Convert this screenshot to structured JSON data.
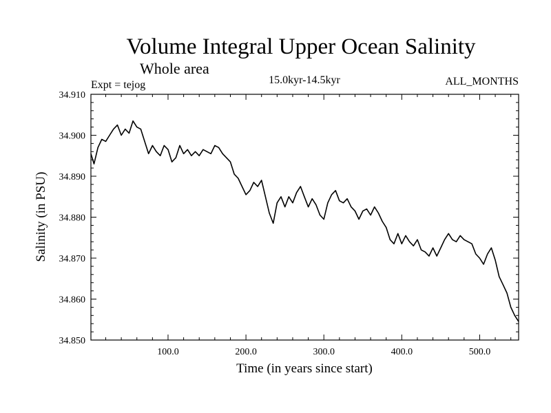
{
  "chart_data": {
    "type": "line",
    "title": "Volume Integral Upper Ocean Salinity",
    "subtitle": "Whole area",
    "experiment_label": "Expt = tejog",
    "period_label": "15.0kyr-14.5kyr",
    "months_label": "ALL_MONTHS",
    "xlabel": "Time (in years since start)",
    "ylabel": "Salinity (in PSU)",
    "xlim": [
      1,
      550
    ],
    "ylim": [
      34.85,
      34.91
    ],
    "x_ticks": [
      100,
      200,
      300,
      400,
      500
    ],
    "x_tick_labels": [
      "100.0",
      "200.0",
      "300.0",
      "400.0",
      "500.0"
    ],
    "y_ticks": [
      34.85,
      34.86,
      34.87,
      34.88,
      34.89,
      34.9,
      34.91
    ],
    "y_tick_labels": [
      "34.850",
      "34.860",
      "34.870",
      "34.880",
      "34.890",
      "34.900",
      "34.910"
    ],
    "grid": false,
    "series": [
      {
        "name": "Salinity",
        "color": "#000000",
        "x": [
          1,
          5,
          10,
          15,
          20,
          25,
          30,
          35,
          40,
          45,
          50,
          55,
          60,
          65,
          70,
          75,
          80,
          85,
          90,
          95,
          100,
          105,
          110,
          115,
          120,
          125,
          130,
          135,
          140,
          145,
          150,
          155,
          160,
          165,
          170,
          175,
          180,
          185,
          190,
          195,
          200,
          205,
          210,
          215,
          220,
          225,
          230,
          235,
          240,
          245,
          250,
          255,
          260,
          265,
          270,
          275,
          280,
          285,
          290,
          295,
          300,
          305,
          310,
          315,
          320,
          325,
          330,
          335,
          340,
          345,
          350,
          355,
          360,
          365,
          370,
          375,
          380,
          385,
          390,
          395,
          400,
          405,
          410,
          415,
          420,
          425,
          430,
          435,
          440,
          445,
          450,
          455,
          460,
          465,
          470,
          475,
          480,
          485,
          490,
          495,
          500,
          505,
          510,
          515,
          520,
          525,
          530,
          535,
          540,
          545,
          550
        ],
        "values": [
          34.8955,
          34.893,
          34.897,
          34.899,
          34.8985,
          34.9,
          34.9015,
          34.9025,
          34.9,
          34.9015,
          34.9005,
          34.9035,
          34.902,
          34.9015,
          34.8985,
          34.8955,
          34.8975,
          34.896,
          34.895,
          34.8975,
          34.8965,
          34.8935,
          34.8945,
          34.8975,
          34.8955,
          34.8965,
          34.895,
          34.896,
          34.895,
          34.8965,
          34.896,
          34.8955,
          34.8975,
          34.897,
          34.8955,
          34.8945,
          34.8935,
          34.8905,
          34.8895,
          34.8875,
          34.8855,
          34.8865,
          34.8885,
          34.8875,
          34.889,
          34.885,
          34.881,
          34.8785,
          34.8835,
          34.885,
          34.8825,
          34.885,
          34.8835,
          34.886,
          34.8875,
          34.885,
          34.8825,
          34.8845,
          34.883,
          34.8805,
          34.8795,
          34.8835,
          34.8855,
          34.8865,
          34.884,
          34.8835,
          34.8845,
          34.8825,
          34.8815,
          34.8795,
          34.8815,
          34.882,
          34.8805,
          34.8825,
          34.881,
          34.879,
          34.8775,
          34.8745,
          34.8735,
          34.876,
          34.8735,
          34.8755,
          34.874,
          34.873,
          34.8745,
          34.872,
          34.8715,
          34.8705,
          34.8725,
          34.8705,
          34.8725,
          34.8745,
          34.876,
          34.8745,
          34.874,
          34.8755,
          34.8745,
          34.874,
          34.8735,
          34.871,
          34.87,
          34.8685,
          34.871,
          34.8725,
          34.8695,
          34.8655,
          34.8635,
          34.8615,
          34.858,
          34.856,
          34.8545
        ]
      }
    ]
  }
}
